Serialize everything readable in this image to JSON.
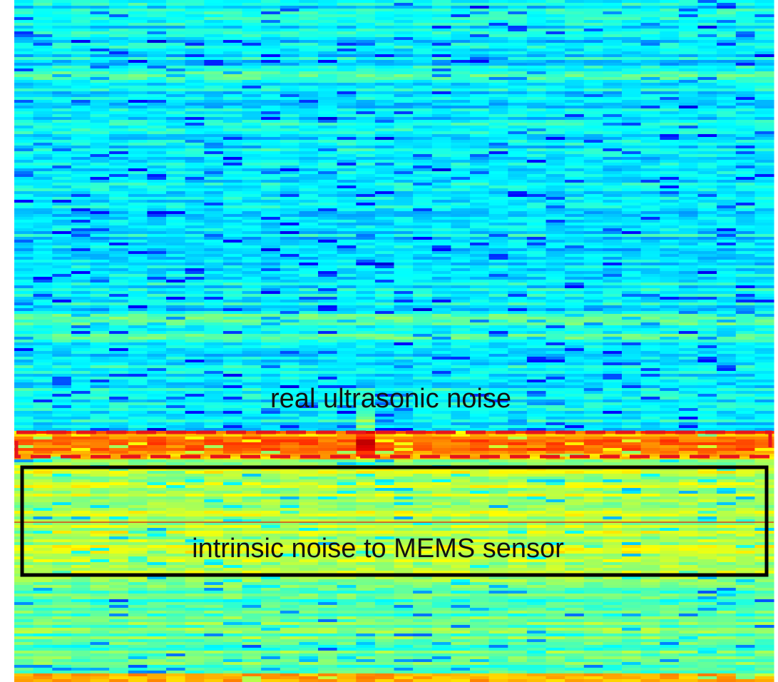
{
  "annotations": {
    "ultrasonic": "real ultrasonic noise",
    "intrinsic": "intrinsic noise to MEMS sensor"
  }
}
